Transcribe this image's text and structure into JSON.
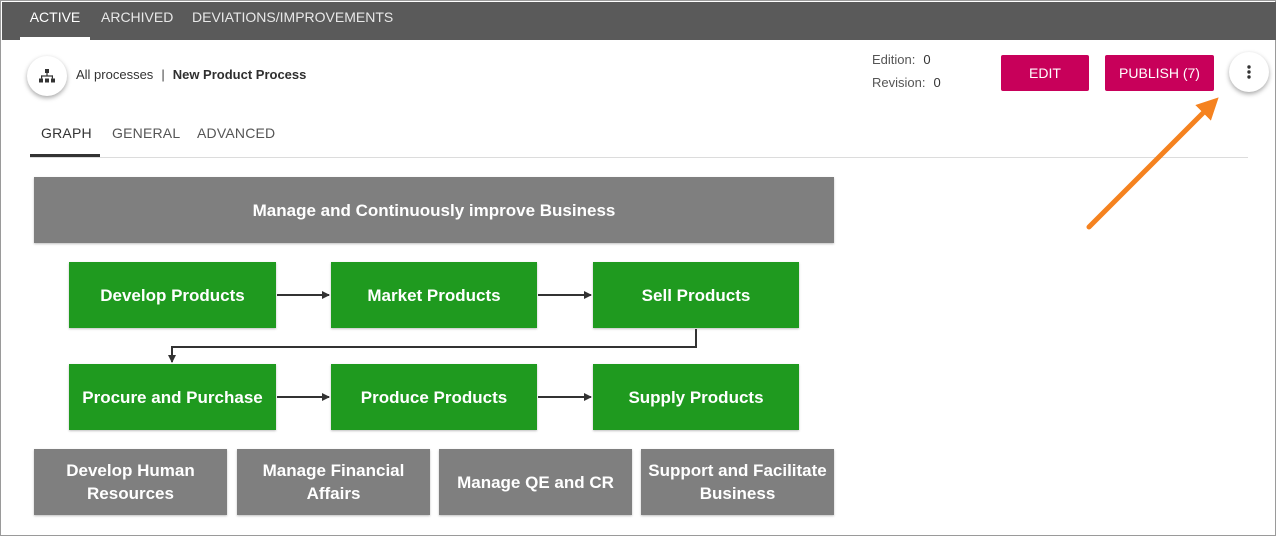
{
  "top_tabs": [
    {
      "label": "ACTIVE",
      "active": true
    },
    {
      "label": "ARCHIVED",
      "active": false
    },
    {
      "label": "DEVIATIONS/IMPROVEMENTS",
      "active": false
    }
  ],
  "breadcrumb": {
    "root": "All processes",
    "separator": "|",
    "current": "New Product Process"
  },
  "meta": {
    "edition_label": "Edition:",
    "edition_value": "0",
    "revision_label": "Revision:",
    "revision_value": "0"
  },
  "actions": {
    "edit_label": "EDIT",
    "publish_label": "PUBLISH (7)"
  },
  "sub_tabs": [
    {
      "label": "GRAPH",
      "active": true
    },
    {
      "label": "GENERAL",
      "active": false
    },
    {
      "label": "ADVANCED",
      "active": false
    }
  ],
  "graph": {
    "top": "Manage and Continuously improve Business",
    "row1": [
      "Develop Products",
      "Market Products",
      "Sell Products"
    ],
    "row2": [
      "Procure and Purchase",
      "Produce Products",
      "Supply Products"
    ],
    "bottom": [
      "Develop Human Resources",
      "Manage Financial Affairs",
      "Manage QE and CR",
      "Support and Facilitate Business"
    ]
  },
  "icons": {
    "hierarchy": "hierarchy-icon",
    "more": "more-vertical-icon",
    "annotation": "annotation-arrow"
  },
  "colors": {
    "topbar": "#5a5a5a",
    "accent_button": "#c8005a",
    "core_process": "#1f9a1f",
    "support_process": "#7f7f7f",
    "annotation_arrow": "#f5821f"
  }
}
